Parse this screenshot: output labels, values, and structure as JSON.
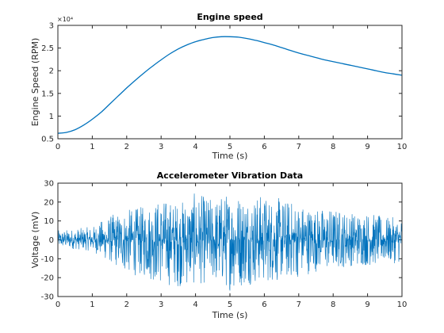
{
  "chart_data": [
    {
      "type": "line",
      "title": "Engine speed",
      "xlabel": "Time (s)",
      "ylabel": "Engine Speed (RPM)",
      "xlim": [
        0,
        10
      ],
      "ylim": [
        0.5,
        3
      ],
      "y_multiplier": "×10⁴",
      "x_ticks": [
        0,
        1,
        2,
        3,
        4,
        5,
        6,
        7,
        8,
        9,
        10
      ],
      "y_ticks": [
        0.5,
        1,
        1.5,
        2,
        2.5,
        3
      ],
      "x_tick_labels": [
        "0",
        "1",
        "2",
        "3",
        "4",
        "5",
        "6",
        "7",
        "8",
        "9",
        "10"
      ],
      "y_tick_labels": [
        "0.5",
        "1",
        "1.5",
        "2",
        "2.5",
        "3"
      ],
      "grid": false,
      "series": [
        {
          "color": "#0072BD",
          "x": [
            0,
            0.25,
            0.5,
            0.75,
            1,
            1.25,
            1.5,
            1.75,
            2,
            2.25,
            2.5,
            2.75,
            3,
            3.25,
            3.5,
            3.75,
            4,
            4.25,
            4.5,
            4.75,
            5,
            5.25,
            5.5,
            5.75,
            6,
            6.25,
            6.5,
            6.75,
            7,
            7.25,
            7.5,
            7.75,
            8,
            8.25,
            8.5,
            8.75,
            9,
            9.25,
            9.5,
            9.75,
            10
          ],
          "values": [
            0.62,
            0.64,
            0.7,
            0.8,
            0.93,
            1.08,
            1.26,
            1.44,
            1.62,
            1.79,
            1.95,
            2.1,
            2.24,
            2.37,
            2.48,
            2.57,
            2.64,
            2.69,
            2.73,
            2.75,
            2.75,
            2.74,
            2.71,
            2.67,
            2.62,
            2.57,
            2.51,
            2.45,
            2.39,
            2.34,
            2.29,
            2.24,
            2.2,
            2.16,
            2.12,
            2.08,
            2.04,
            2.0,
            1.96,
            1.93,
            1.9
          ]
        }
      ]
    },
    {
      "type": "line",
      "title": "Accelerometer Vibration Data",
      "xlabel": "Time (s)",
      "ylabel": "Voltage (mV)",
      "xlim": [
        0,
        10
      ],
      "ylim": [
        -30,
        30
      ],
      "x_ticks": [
        0,
        1,
        2,
        3,
        4,
        5,
        6,
        7,
        8,
        9,
        10
      ],
      "y_ticks": [
        -30,
        -20,
        -10,
        0,
        10,
        20,
        30
      ],
      "x_tick_labels": [
        "0",
        "1",
        "2",
        "3",
        "4",
        "5",
        "6",
        "7",
        "8",
        "9",
        "10"
      ],
      "y_tick_labels": [
        "-30",
        "-20",
        "-10",
        "0",
        "10",
        "20",
        "30"
      ],
      "grid": false,
      "series": [
        {
          "color": "#0072BD",
          "x": [
            0,
            0.5,
            1,
            1.5,
            2,
            2.5,
            3,
            3.5,
            4,
            4.5,
            5,
            5.5,
            6,
            6.5,
            7,
            7.5,
            8,
            8.5,
            9,
            9.5,
            10
          ],
          "max": [
            5,
            6,
            7,
            13,
            16,
            18,
            22,
            20,
            25,
            22,
            26,
            25,
            24,
            22,
            20,
            17,
            17,
            15,
            15,
            12,
            12
          ],
          "min": [
            -4,
            -5,
            -6,
            -12,
            -18,
            -20,
            -24,
            -25,
            -24,
            -23,
            -27,
            -24,
            -23,
            -22,
            -20,
            -17,
            -16,
            -14,
            -14,
            -13,
            -12
          ]
        }
      ]
    }
  ]
}
